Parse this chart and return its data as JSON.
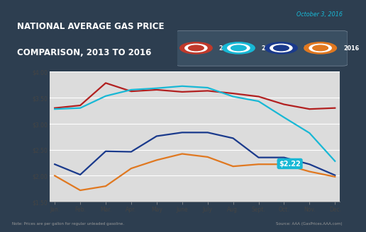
{
  "title_line1": "NATIONAL AVERAGE GAS PRICE",
  "title_line2": "COMPARISON, 2013 TO 2016",
  "date_label": "October 3, 2016",
  "note": "Note: Prices are per gallon for regular unleaded gasoline.",
  "source": "Source: AAA (GasPrices.AAA.com)",
  "annotation": "$2.22",
  "annotation_xi": 8.7,
  "annotation_yi": 2.22,
  "months": [
    "Jan.",
    "Feb.",
    "Mar.",
    "Apr.",
    "May",
    "June",
    "July",
    "Aug.",
    "Sept.",
    "Oct.",
    "Nov.",
    "Dec."
  ],
  "ylim": [
    1.5,
    4.0
  ],
  "yticks": [
    1.5,
    2.0,
    2.5,
    3.0,
    3.5,
    4.0
  ],
  "ytick_labels": [
    "$1.50",
    "$2.00",
    "$2.50",
    "$3.00",
    "$3.50",
    "$4.00"
  ],
  "bg_header": "#c0392b",
  "bg_dark": "#2d3e50",
  "bg_chart": "#dcdcdc",
  "color_2013": "#b22020",
  "color_2014": "#18b8d5",
  "color_2015": "#1a3a8c",
  "color_2016": "#e07820",
  "annotation_bg": "#18b8d5",
  "legend_years": [
    "2013",
    "2014",
    "2015",
    "2016"
  ],
  "legend_icon_colors": [
    "#c0392b",
    "#18b8d5",
    "#1a3a8c",
    "#e07820"
  ],
  "y2013": [
    3.3,
    3.35,
    3.78,
    3.62,
    3.65,
    3.61,
    3.63,
    3.58,
    3.52,
    3.37,
    3.28,
    3.3
  ],
  "y2014": [
    3.28,
    3.3,
    3.53,
    3.65,
    3.68,
    3.72,
    3.69,
    3.52,
    3.43,
    3.12,
    2.82,
    2.28
  ],
  "y2015": [
    2.22,
    2.02,
    2.47,
    2.46,
    2.76,
    2.83,
    2.83,
    2.72,
    2.35,
    2.35,
    2.22,
    2.01
  ],
  "y2016": [
    2.0,
    1.72,
    1.8,
    2.14,
    2.3,
    2.42,
    2.36,
    2.18,
    2.22,
    2.22,
    2.08,
    1.98
  ]
}
